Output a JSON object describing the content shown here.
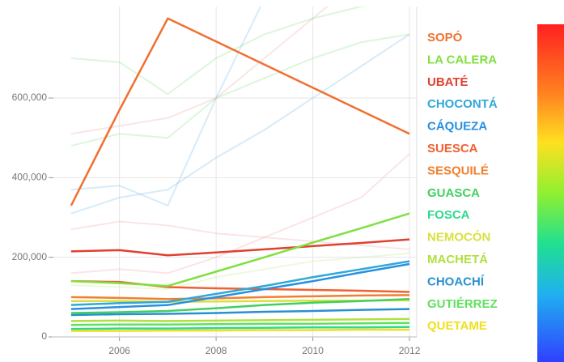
{
  "chart_data": {
    "type": "line",
    "x": [
      2005,
      2006,
      2007,
      2008,
      2009,
      2010,
      2011,
      2012
    ],
    "xlim": [
      2004.6,
      2012.15
    ],
    "xticks": [
      2006,
      2008,
      2010,
      2012
    ],
    "ylim": [
      0,
      830000
    ],
    "yticks": [
      {
        "value": 0,
        "label": "0"
      },
      {
        "value": 200000,
        "label": "200,000"
      },
      {
        "value": 400000,
        "label": "400,000"
      },
      {
        "value": 600000,
        "label": "600,000"
      }
    ],
    "grid": true,
    "faint_opacity": 0.28,
    "faint_series": [
      {
        "color": "#80e080",
        "values": [
          700000,
          690000,
          610000,
          700000,
          760000,
          800000,
          830000,
          850000
        ]
      },
      {
        "color": "#80e080",
        "values": [
          480000,
          510000,
          500000,
          600000,
          650000,
          700000,
          740000,
          760000
        ]
      },
      {
        "color": "#70b8e8",
        "values": [
          310000,
          350000,
          370000,
          450000,
          520000,
          600000,
          680000,
          760000
        ]
      },
      {
        "color": "#70b8e8",
        "values": [
          370000,
          380000,
          330000,
          600000,
          850000,
          900000,
          950000,
          1000000
        ]
      },
      {
        "color": "#f0a0a0",
        "values": [
          270000,
          290000,
          280000,
          260000,
          250000,
          240000,
          230000,
          220000
        ]
      },
      {
        "color": "#f0a0a0",
        "values": [
          510000,
          530000,
          550000,
          600000,
          700000,
          800000,
          900000,
          1000000
        ]
      },
      {
        "color": "#f0a0a0",
        "values": [
          160000,
          170000,
          160000,
          200000,
          250000,
          300000,
          350000,
          460000
        ]
      },
      {
        "color": "#c0e880",
        "values": [
          130000,
          125000,
          120000,
          150000,
          170000,
          190000,
          200000,
          210000
        ]
      }
    ],
    "series": [
      {
        "name": "SOPÓ",
        "color": "#f07030",
        "values": [
          330000,
          570000,
          800000,
          742000,
          684000,
          626000,
          568000,
          510000
        ]
      },
      {
        "name": "LA CALERA",
        "color": "#80e040",
        "values": [
          140000,
          135000,
          128000,
          164000,
          200000,
          237000,
          273000,
          310000
        ]
      },
      {
        "name": "UBATÉ",
        "color": "#e04030",
        "values": [
          215000,
          218000,
          205000,
          212000,
          220000,
          228000,
          236000,
          245000
        ]
      },
      {
        "name": "CHOCONTÁ",
        "color": "#30a8d8",
        "values": [
          80000,
          85000,
          88000,
          108000,
          128000,
          150000,
          170000,
          190000
        ]
      },
      {
        "name": "CÁQUEZA",
        "color": "#2890e0",
        "values": [
          70000,
          75000,
          80000,
          100000,
          120000,
          140000,
          162000,
          183000
        ]
      },
      {
        "name": "SUESCA",
        "color": "#f06030",
        "values": [
          140000,
          138000,
          125000,
          122000,
          120000,
          118000,
          116000,
          113000
        ]
      },
      {
        "name": "SESQUILÉ",
        "color": "#f08030",
        "values": [
          100000,
          98000,
          95000,
          97000,
          100000,
          102000,
          104000,
          105000
        ]
      },
      {
        "name": "GUASCA",
        "color": "#40d060",
        "values": [
          60000,
          62000,
          65000,
          72000,
          80000,
          86000,
          90000,
          95000
        ]
      },
      {
        "name": "FOSCA",
        "color": "#30d890",
        "values": [
          20000,
          21000,
          21000,
          22000,
          23000,
          24000,
          24000,
          25000
        ]
      },
      {
        "name": "NEMOCÓN",
        "color": "#d8e040",
        "values": [
          90000,
          90000,
          88000,
          89000,
          90000,
          91000,
          91000,
          92000
        ]
      },
      {
        "name": "MACHETÁ",
        "color": "#b0e040",
        "values": [
          40000,
          41000,
          40000,
          41000,
          42000,
          43000,
          44000,
          45000
        ]
      },
      {
        "name": "CHOACHÍ",
        "color": "#2890d0",
        "values": [
          55000,
          57000,
          58000,
          60000,
          63000,
          65000,
          68000,
          70000
        ]
      },
      {
        "name": "GUTIÉRREZ",
        "color": "#60e060",
        "values": [
          30000,
          31000,
          31000,
          32000,
          33000,
          33000,
          34000,
          35000
        ]
      },
      {
        "name": "QUETAME",
        "color": "#f0e020",
        "values": [
          15000,
          15000,
          16000,
          16000,
          17000,
          17000,
          18000,
          18000
        ]
      }
    ]
  }
}
